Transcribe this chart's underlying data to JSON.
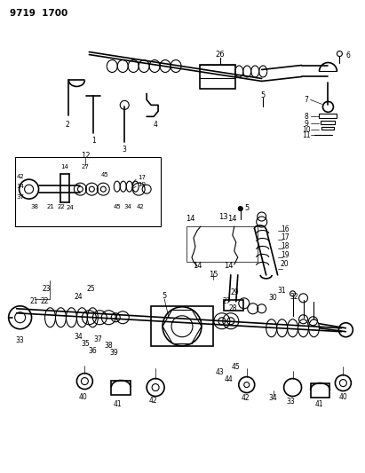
{
  "title": "9719  1700",
  "bg_color": "#ffffff",
  "line_color": "#000000",
  "fig_width": 4.11,
  "fig_height": 5.33,
  "dpi": 100
}
